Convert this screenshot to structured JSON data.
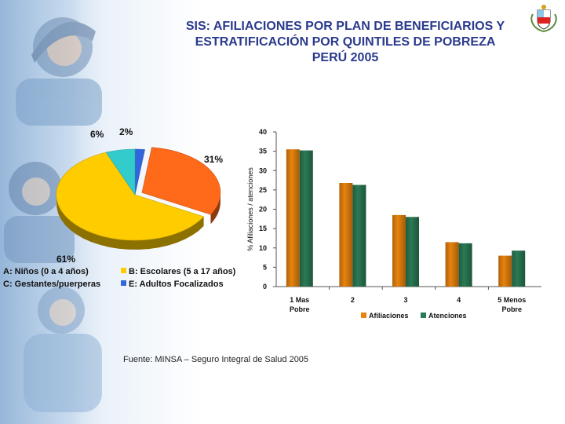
{
  "title": {
    "line1": "SIS: AFILIACIONES POR PLAN DE BENEFICIARIOS Y",
    "line2": "ESTRATIFICACIÓN POR QUINTILES DE POBREZA",
    "line3": "PERÚ 2005"
  },
  "source": "Fuente: MINSA – Seguro Integral de Salud  2005",
  "colors": {
    "title": "#2a3a8c",
    "afiliaciones": "#e8830e",
    "atenciones": "#2a7a55",
    "pie_a": "#ffcc00",
    "pie_b": "#ff6a1a",
    "pie_c": "#33cccc",
    "pie_e": "#3366dd"
  },
  "chart_data": [
    {
      "type": "pie",
      "title": "",
      "slices": [
        {
          "key": "A",
          "label": "A: Niños (0 a 4 años)",
          "value": 61,
          "display": "61%",
          "color": "#ffcc00"
        },
        {
          "key": "B",
          "label": "B: Escolares (5 a 17 años)",
          "value": 31,
          "display": "31%",
          "color": "#ff6a1a"
        },
        {
          "key": "C",
          "label": "C: Gestantes/puerperas",
          "value": 6,
          "display": "6%",
          "color": "#33cccc"
        },
        {
          "key": "E",
          "label": "E: Adultos Focalizados",
          "value": 2,
          "display": "2%",
          "color": "#3366dd"
        }
      ],
      "legend_position": "bottom"
    },
    {
      "type": "bar",
      "categories": [
        "1 Mas Pobre",
        "2",
        "3",
        "4",
        "5 Menos Pobre"
      ],
      "series": [
        {
          "name": "Afiliaciones",
          "values": [
            35.5,
            26.8,
            18.5,
            11.5,
            8.0
          ],
          "color": "#e8830e"
        },
        {
          "name": "Atenciones",
          "values": [
            35.2,
            26.3,
            18.0,
            11.2,
            9.3
          ],
          "color": "#2a7a55"
        }
      ],
      "xlabel": "",
      "ylabel": "% Afiliaciones / atenciones",
      "ylim": [
        0,
        40
      ],
      "yticks": [
        "0",
        "5",
        "10",
        "15",
        "20",
        "25",
        "30",
        "35",
        "40"
      ],
      "grid": false,
      "legend_position": "bottom"
    }
  ]
}
